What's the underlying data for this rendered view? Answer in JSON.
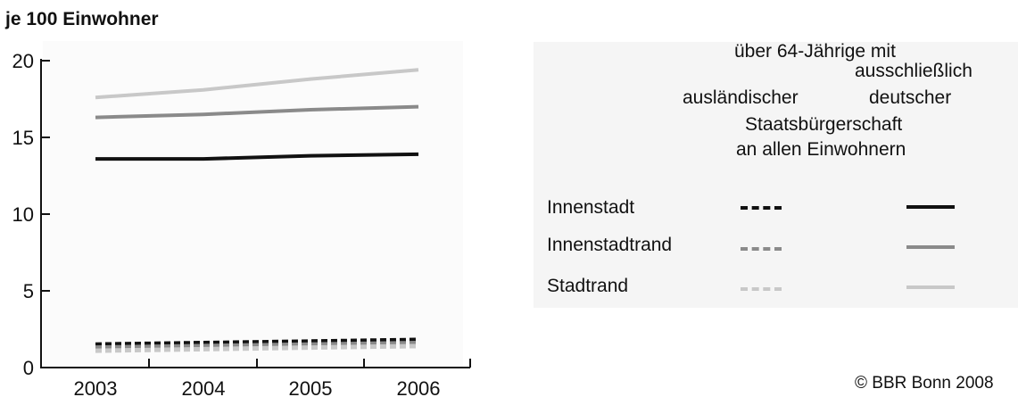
{
  "chart_data": {
    "type": "line",
    "title": "",
    "ylabel": "je 100 Einwohner",
    "xlabel": "",
    "x": [
      "2003",
      "2004",
      "2005",
      "2006"
    ],
    "ylim": [
      0,
      20
    ],
    "yticks": [
      "0",
      "5",
      "10",
      "15",
      "20"
    ],
    "grid": false,
    "legend_placement": "right",
    "legend_header": {
      "column_group": "über 64-Jährige mit",
      "col_foreign": [
        "ausländischer",
        "Staatsbürgerschaft",
        "an allen Einwohnern"
      ],
      "col_german": [
        "ausschließlich",
        "deutscher"
      ]
    },
    "categories": [
      "Innenstadt",
      "Innenstadtrand",
      "Stadtrand"
    ],
    "series": [
      {
        "category": "Innenstadt",
        "group": "ausschließlich deutscher",
        "style": "solid",
        "color": "#111111",
        "values": [
          13.6,
          13.6,
          13.8,
          13.9
        ]
      },
      {
        "category": "Innenstadtrand",
        "group": "ausschließlich deutscher",
        "style": "solid",
        "color": "#8a8a8a",
        "values": [
          16.3,
          16.5,
          16.8,
          17.0
        ]
      },
      {
        "category": "Stadtrand",
        "group": "ausschließlich deutscher",
        "style": "solid",
        "color": "#c8c8c8",
        "values": [
          17.6,
          18.1,
          18.8,
          19.4
        ]
      },
      {
        "category": "Innenstadt",
        "group": "ausländischer",
        "style": "dashed",
        "color": "#111111",
        "values": [
          1.5,
          1.6,
          1.7,
          1.8
        ]
      },
      {
        "category": "Innenstadtrand",
        "group": "ausländischer",
        "style": "dashed",
        "color": "#8a8a8a",
        "values": [
          1.3,
          1.4,
          1.5,
          1.6
        ]
      },
      {
        "category": "Stadtrand",
        "group": "ausländischer",
        "style": "dashed",
        "color": "#c8c8c8",
        "values": [
          1.1,
          1.2,
          1.3,
          1.4
        ]
      }
    ]
  },
  "copyright": "© BBR Bonn 2008"
}
